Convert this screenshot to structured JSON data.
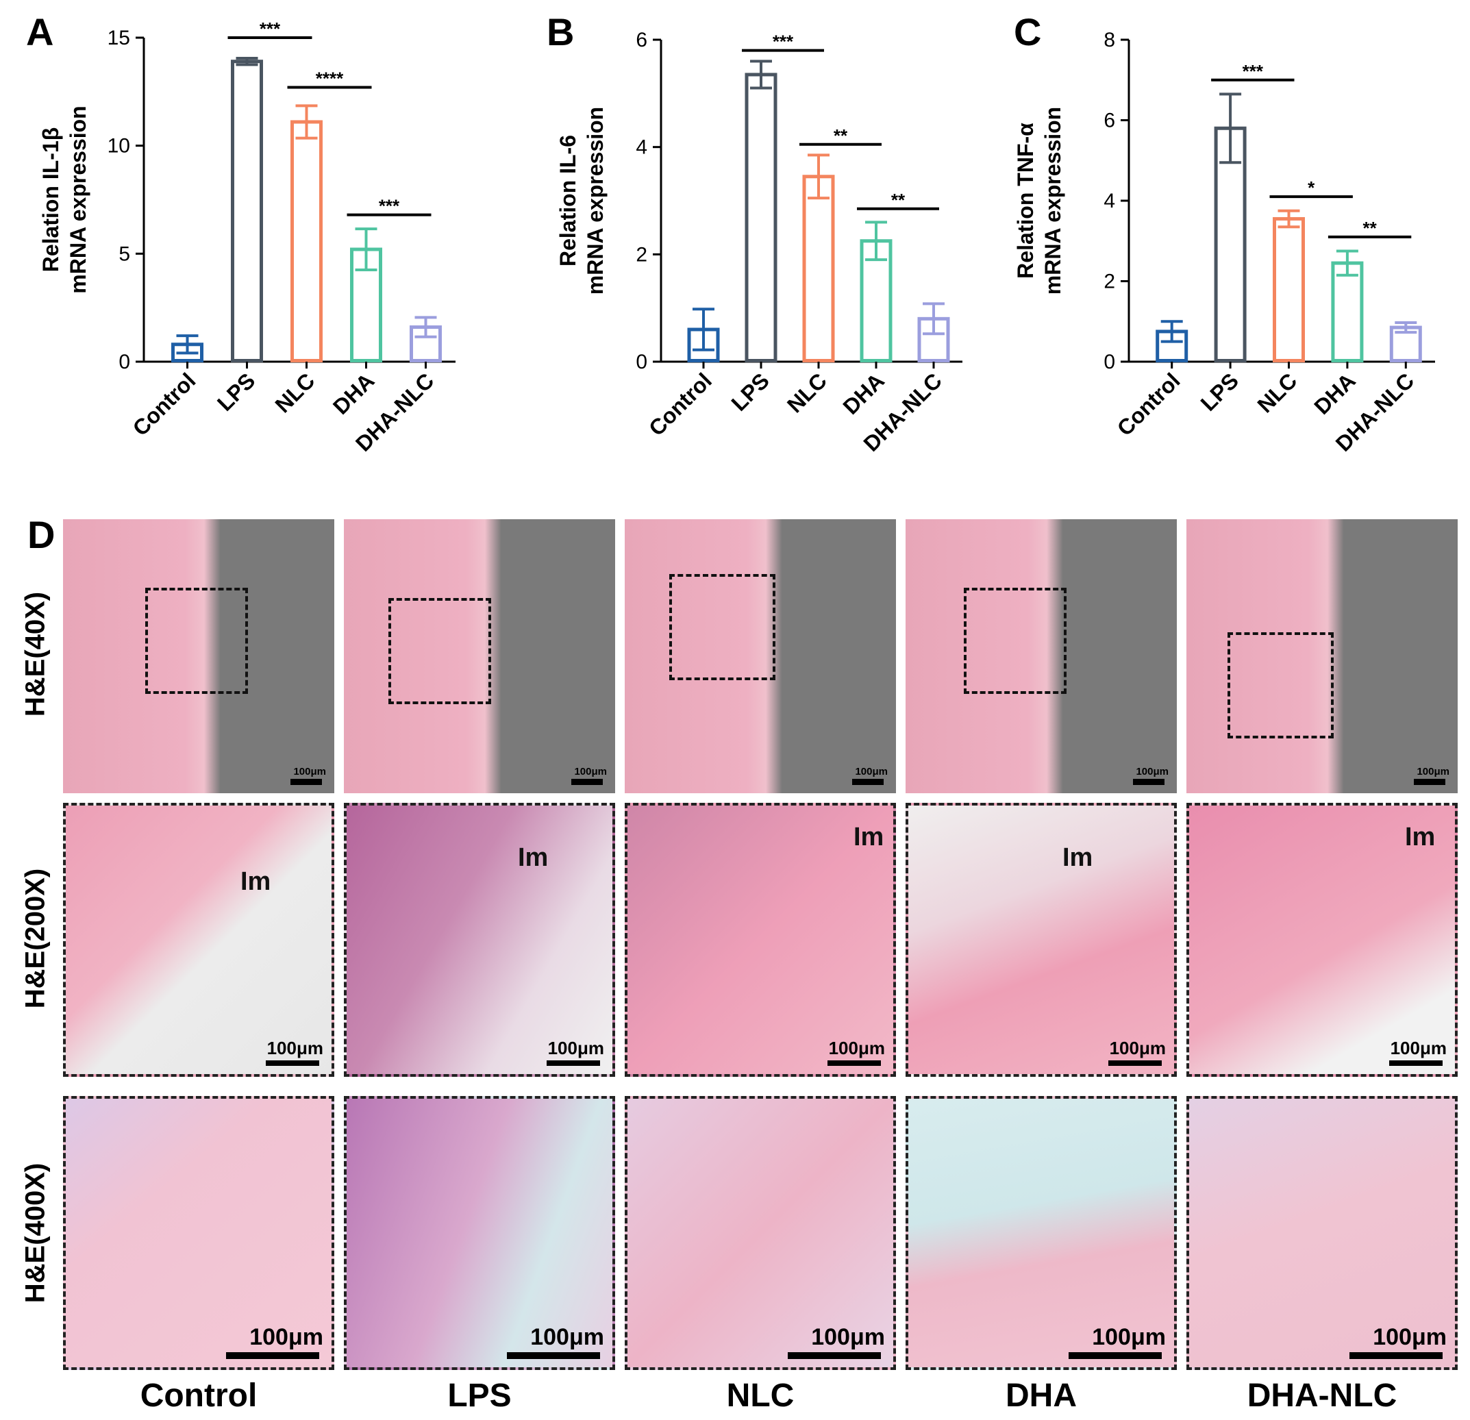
{
  "colors": {
    "Control": "#1f5fa6",
    "LPS": "#4a5561",
    "NLC": "#f4855e",
    "DHA": "#4fc4a0",
    "DHA-NLC": "#9b9ede"
  },
  "panels": {
    "a": "A",
    "b": "B",
    "c": "C",
    "d": "D"
  },
  "chart_data": [
    {
      "type": "bar",
      "panel": "A",
      "categories": [
        "Control",
        "LPS",
        "NLC",
        "DHA",
        "DHA-NLC"
      ],
      "values": [
        0.8,
        13.9,
        11.1,
        5.2,
        1.6
      ],
      "errors": [
        0.4,
        0.15,
        0.75,
        0.95,
        0.45
      ],
      "ylabel_line1": "Relation IL-1β",
      "ylabel_line2": "mRNA expression",
      "ylim": [
        0,
        15
      ],
      "yticks": [
        0,
        5,
        10,
        15
      ],
      "significance": [
        {
          "from": 1,
          "to": 2,
          "label": "***",
          "y": 15.0
        },
        {
          "from": 2,
          "to": 3,
          "label": "****",
          "y": 12.7
        },
        {
          "from": 3,
          "to": 4,
          "label": "***",
          "y": 6.8
        }
      ]
    },
    {
      "type": "bar",
      "panel": "B",
      "categories": [
        "Control",
        "LPS",
        "NLC",
        "DHA",
        "DHA-NLC"
      ],
      "values": [
        0.6,
        5.35,
        3.45,
        2.25,
        0.8
      ],
      "errors": [
        0.38,
        0.25,
        0.4,
        0.35,
        0.28
      ],
      "ylabel_line1": "Relation IL-6",
      "ylabel_line2": "mRNA expression",
      "ylim": [
        0,
        6
      ],
      "yticks": [
        0,
        2,
        4,
        6
      ],
      "significance": [
        {
          "from": 1,
          "to": 2,
          "label": "***",
          "y": 5.8
        },
        {
          "from": 2,
          "to": 3,
          "label": "**",
          "y": 4.05
        },
        {
          "from": 3,
          "to": 4,
          "label": "**",
          "y": 2.85
        }
      ]
    },
    {
      "type": "bar",
      "panel": "C",
      "categories": [
        "Control",
        "LPS",
        "NLC",
        "DHA",
        "DHA-NLC"
      ],
      "values": [
        0.75,
        5.8,
        3.55,
        2.45,
        0.85
      ],
      "errors": [
        0.25,
        0.85,
        0.2,
        0.3,
        0.12
      ],
      "ylabel_line1": "Relation TNF-α",
      "ylabel_line2": "mRNA expression",
      "ylim": [
        0,
        8
      ],
      "yticks": [
        0,
        2,
        4,
        6,
        8
      ],
      "significance": [
        {
          "from": 1,
          "to": 2,
          "label": "***",
          "y": 7.0
        },
        {
          "from": 2,
          "to": 3,
          "label": "*",
          "y": 4.1
        },
        {
          "from": 3,
          "to": 4,
          "label": "**",
          "y": 3.1
        }
      ]
    }
  ],
  "histology": {
    "row_labels": [
      "H&E(40X)",
      "H&E(200X)",
      "H&E(400X)"
    ],
    "col_labels": [
      "Control",
      "LPS",
      "NLC",
      "DHA",
      "DHA-NLC"
    ],
    "scale_label": "100μm",
    "implant_label": "Im"
  }
}
